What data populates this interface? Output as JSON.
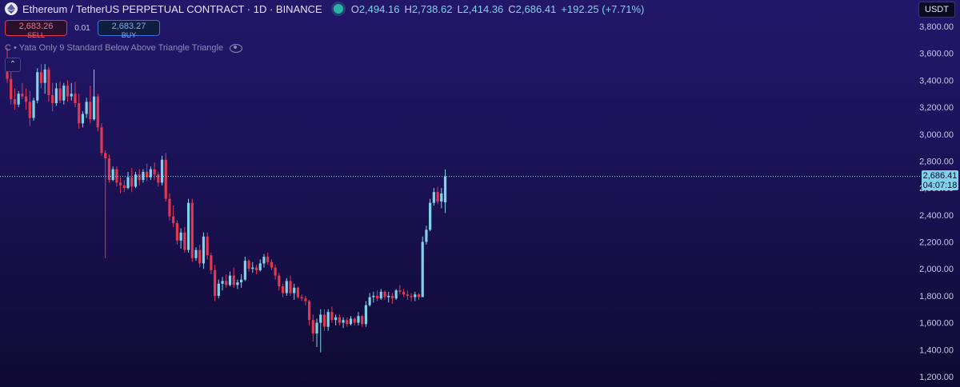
{
  "header": {
    "title": "Ethereum / TetherUS PERPETUAL CONTRACT · 1D · BINANCE",
    "open_key": "O",
    "open": "2,494.16",
    "high_key": "H",
    "high": "2,738.62",
    "low_key": "L",
    "low": "2,414.36",
    "close_key": "C",
    "close": "2,686.41",
    "change": "+192.25 (+7.71%)"
  },
  "trade": {
    "sell_price": "2,683.26",
    "sell_label": "SELL",
    "spread": "0.01",
    "buy_price": "2,683.27",
    "buy_label": "BUY"
  },
  "indicators": {
    "text": "C • Yata Only 9 Standard Below Above Triangle Triangle",
    "icon": "eye-icon"
  },
  "collapse": {
    "glyph": "⌃"
  },
  "currency": {
    "label": "USDT"
  },
  "last_price": {
    "price": "2,686.41",
    "countdown": "04:07:18"
  },
  "colors": {
    "up": "#7fd3e8",
    "down": "#e0384f",
    "background_top": "#23176a",
    "background_bottom": "#0f0a33"
  },
  "chart_data": {
    "type": "candlestick",
    "y_ticks": [
      "3,800.00",
      "3,600.00",
      "3,400.00",
      "3,200.00",
      "3,000.00",
      "2,800.00",
      "2,600.00",
      "2,400.00",
      "2,200.00",
      "2,000.00",
      "1,800.00",
      "1,600.00",
      "1,400.00",
      "1,200.00"
    ],
    "ylim": [
      1200,
      3800
    ],
    "last_price": 2686.41,
    "ohlc": [
      [
        3540,
        3640,
        3380,
        3410
      ],
      [
        3410,
        3470,
        3220,
        3260
      ],
      [
        3260,
        3340,
        3180,
        3220
      ],
      [
        3220,
        3320,
        3200,
        3300
      ],
      [
        3300,
        3380,
        3260,
        3280
      ],
      [
        3280,
        3340,
        3180,
        3240
      ],
      [
        3240,
        3320,
        3060,
        3120
      ],
      [
        3120,
        3270,
        3100,
        3250
      ],
      [
        3250,
        3490,
        3230,
        3460
      ],
      [
        3460,
        3520,
        3340,
        3380
      ],
      [
        3380,
        3520,
        3300,
        3480
      ],
      [
        3480,
        3500,
        3240,
        3290
      ],
      [
        3290,
        3380,
        3170,
        3230
      ],
      [
        3230,
        3380,
        3210,
        3340
      ],
      [
        3340,
        3390,
        3230,
        3250
      ],
      [
        3250,
        3380,
        3220,
        3360
      ],
      [
        3360,
        3400,
        3240,
        3280
      ],
      [
        3280,
        3380,
        3250,
        3300
      ],
      [
        3300,
        3390,
        3200,
        3230
      ],
      [
        3230,
        3300,
        3040,
        3080
      ],
      [
        3080,
        3170,
        3050,
        3150
      ],
      [
        3150,
        3270,
        3120,
        3240
      ],
      [
        3240,
        3360,
        3080,
        3110
      ],
      [
        3110,
        3480,
        3100,
        3280
      ],
      [
        3280,
        3300,
        3020,
        3050
      ],
      [
        3050,
        3080,
        2840,
        2860
      ],
      [
        2860,
        2880,
        2080,
        2820
      ],
      [
        2820,
        2850,
        2640,
        2660
      ],
      [
        2660,
        2760,
        2650,
        2740
      ],
      [
        2740,
        2760,
        2610,
        2640
      ],
      [
        2640,
        2680,
        2560,
        2620
      ],
      [
        2620,
        2660,
        2570,
        2600
      ],
      [
        2600,
        2720,
        2590,
        2680
      ],
      [
        2680,
        2750,
        2570,
        2610
      ],
      [
        2610,
        2720,
        2600,
        2700
      ],
      [
        2700,
        2740,
        2620,
        2660
      ],
      [
        2660,
        2740,
        2640,
        2720
      ],
      [
        2720,
        2780,
        2650,
        2680
      ],
      [
        2680,
        2760,
        2660,
        2740
      ],
      [
        2740,
        2790,
        2660,
        2700
      ],
      [
        2700,
        2720,
        2610,
        2640
      ],
      [
        2640,
        2840,
        2620,
        2810
      ],
      [
        2810,
        2860,
        2500,
        2520
      ],
      [
        2520,
        2560,
        2360,
        2390
      ],
      [
        2390,
        2470,
        2310,
        2340
      ],
      [
        2340,
        2360,
        2180,
        2210
      ],
      [
        2210,
        2300,
        2150,
        2270
      ],
      [
        2270,
        2310,
        2120,
        2140
      ],
      [
        2140,
        2520,
        2120,
        2490
      ],
      [
        2490,
        2520,
        2050,
        2080
      ],
      [
        2080,
        2160,
        2060,
        2140
      ],
      [
        2140,
        2180,
        2010,
        2040
      ],
      [
        2040,
        2270,
        2000,
        2240
      ],
      [
        2240,
        2270,
        2070,
        2100
      ],
      [
        2100,
        2120,
        1960,
        1990
      ],
      [
        1990,
        2030,
        1760,
        1800
      ],
      [
        1800,
        1920,
        1780,
        1890
      ],
      [
        1890,
        1940,
        1840,
        1910
      ],
      [
        1910,
        1960,
        1860,
        1880
      ],
      [
        1880,
        1980,
        1870,
        1950
      ],
      [
        1950,
        2010,
        1860,
        1880
      ],
      [
        1880,
        1920,
        1850,
        1900
      ],
      [
        1900,
        1960,
        1860,
        1920
      ],
      [
        1920,
        2090,
        1910,
        2060
      ],
      [
        2060,
        2070,
        1980,
        2000
      ],
      [
        2000,
        2050,
        1970,
        2010
      ],
      [
        2010,
        2030,
        1960,
        1990
      ],
      [
        1990,
        2070,
        1980,
        2040
      ],
      [
        2040,
        2110,
        2010,
        2090
      ],
      [
        2090,
        2120,
        2030,
        2050
      ],
      [
        2050,
        2070,
        1990,
        2010
      ],
      [
        2010,
        2030,
        1920,
        1950
      ],
      [
        1950,
        1970,
        1840,
        1870
      ],
      [
        1870,
        1890,
        1790,
        1820
      ],
      [
        1820,
        1930,
        1800,
        1910
      ],
      [
        1910,
        1950,
        1800,
        1820
      ],
      [
        1820,
        1890,
        1770,
        1860
      ],
      [
        1860,
        1870,
        1780,
        1790
      ],
      [
        1790,
        1810,
        1760,
        1780
      ],
      [
        1780,
        1800,
        1730,
        1760
      ],
      [
        1760,
        1770,
        1580,
        1620
      ],
      [
        1620,
        1660,
        1460,
        1520
      ],
      [
        1520,
        1630,
        1420,
        1600
      ],
      [
        1600,
        1700,
        1380,
        1660
      ],
      [
        1660,
        1700,
        1540,
        1570
      ],
      [
        1570,
        1700,
        1540,
        1680
      ],
      [
        1680,
        1720,
        1600,
        1620
      ],
      [
        1620,
        1660,
        1580,
        1640
      ],
      [
        1640,
        1660,
        1580,
        1600
      ],
      [
        1600,
        1640,
        1560,
        1620
      ],
      [
        1620,
        1640,
        1570,
        1590
      ],
      [
        1590,
        1650,
        1580,
        1630
      ],
      [
        1630,
        1640,
        1580,
        1600
      ],
      [
        1600,
        1680,
        1580,
        1650
      ],
      [
        1650,
        1660,
        1570,
        1590
      ],
      [
        1590,
        1760,
        1570,
        1730
      ],
      [
        1730,
        1820,
        1720,
        1790
      ],
      [
        1790,
        1830,
        1750,
        1800
      ],
      [
        1800,
        1840,
        1760,
        1780
      ],
      [
        1780,
        1850,
        1770,
        1830
      ],
      [
        1830,
        1840,
        1770,
        1790
      ],
      [
        1790,
        1830,
        1750,
        1800
      ],
      [
        1800,
        1820,
        1740,
        1780
      ],
      [
        1780,
        1850,
        1770,
        1840
      ],
      [
        1840,
        1880,
        1810,
        1830
      ],
      [
        1830,
        1850,
        1790,
        1810
      ],
      [
        1810,
        1840,
        1770,
        1800
      ],
      [
        1800,
        1820,
        1760,
        1790
      ],
      [
        1790,
        1830,
        1760,
        1810
      ],
      [
        1810,
        1820,
        1770,
        1790
      ],
      [
        1790,
        2240,
        1790,
        2200
      ],
      [
        2200,
        2320,
        2180,
        2290
      ],
      [
        2290,
        2520,
        2280,
        2490
      ],
      [
        2490,
        2600,
        2470,
        2570
      ],
      [
        2570,
        2610,
        2480,
        2500
      ],
      [
        2500,
        2600,
        2450,
        2560
      ],
      [
        2494.16,
        2738.62,
        2414.36,
        2686.41
      ]
    ]
  }
}
